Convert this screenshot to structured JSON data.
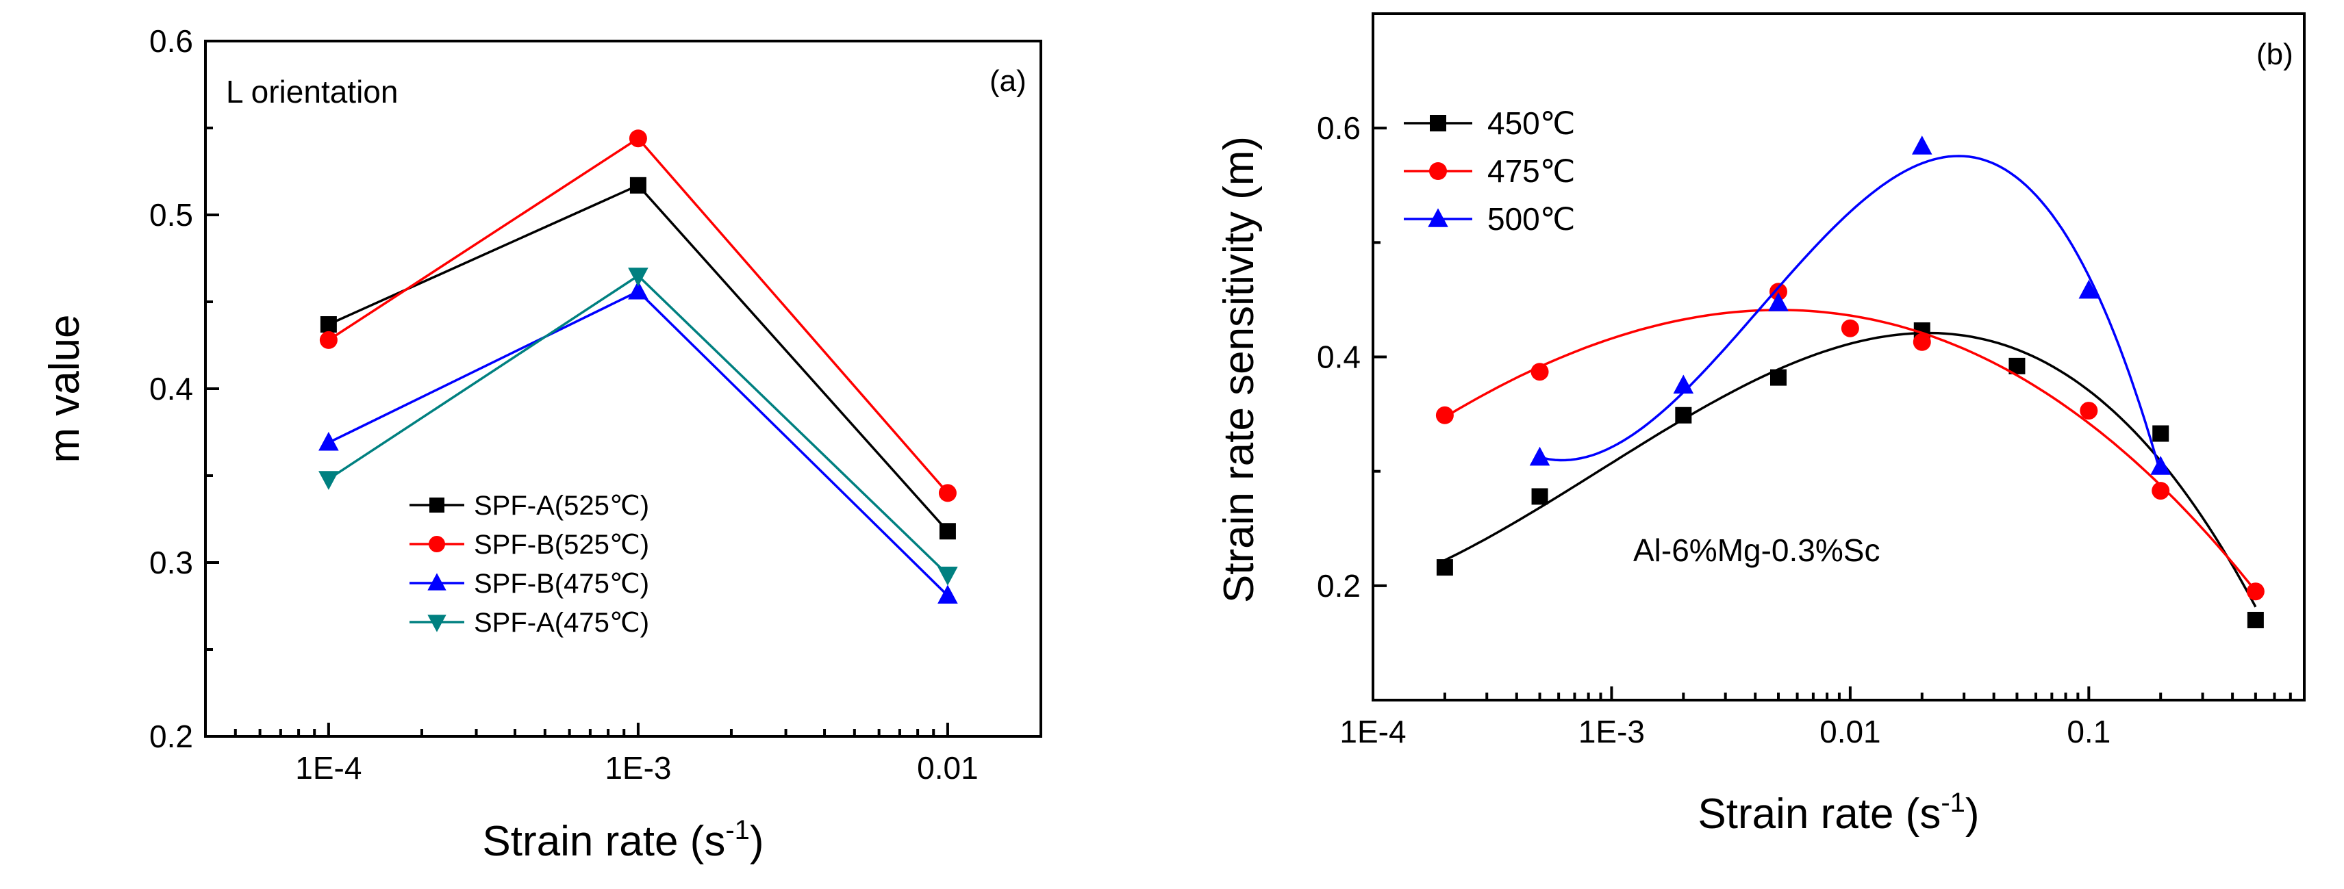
{
  "chart_data": [
    {
      "type": "line",
      "panel_label": "(a)",
      "annotation": "L orientation",
      "xlabel": "Strain rate (s",
      "xlabel_sup": "-1",
      "xlabel_end": ")",
      "ylabel": "m value",
      "xscale": "log",
      "xlim": [
        4e-05,
        0.02
      ],
      "ylim": [
        0.2,
        0.6
      ],
      "x_ticks": [
        {
          "value": 0.0001,
          "label": "1E-4"
        },
        {
          "value": 0.001,
          "label": "1E-3"
        },
        {
          "value": 0.01,
          "label": "0.01"
        }
      ],
      "y_ticks": [
        {
          "value": 0.2,
          "label": "0.2"
        },
        {
          "value": 0.3,
          "label": "0.3"
        },
        {
          "value": 0.4,
          "label": "0.4"
        },
        {
          "value": 0.5,
          "label": "0.5"
        },
        {
          "value": 0.6,
          "label": "0.6"
        }
      ],
      "x": [
        0.0001,
        0.001,
        0.01
      ],
      "legend_position": "lower-middle",
      "series": [
        {
          "name": "SPF-A(525℃)",
          "color": "#000000",
          "marker": "square",
          "values": [
            0.437,
            0.517,
            0.318
          ]
        },
        {
          "name": "SPF-B(525℃)",
          "color": "#ff0000",
          "marker": "circle",
          "values": [
            0.428,
            0.544,
            0.34
          ]
        },
        {
          "name": "SPF-B(475℃)",
          "color": "#0000ff",
          "marker": "triangle-up",
          "values": [
            0.369,
            0.456,
            0.281
          ]
        },
        {
          "name": "SPF-A(475℃)",
          "color": "#008080",
          "marker": "triangle-down",
          "values": [
            0.348,
            0.465,
            0.293
          ]
        }
      ]
    },
    {
      "type": "scatter",
      "panel_label": "(b)",
      "annotation": "Al-6%Mg-0.3%Sc",
      "xlabel": "Strain rate (s",
      "xlabel_sup": "-1",
      "xlabel_end": ")",
      "ylabel": "Strain rate sensitivity (m)",
      "xscale": "log",
      "xlim": [
        0.0001,
        0.8
      ],
      "ylim": [
        0.1,
        0.7
      ],
      "x_ticks": [
        {
          "value": 0.0001,
          "label": "1E-4"
        },
        {
          "value": 0.001,
          "label": "1E-3"
        },
        {
          "value": 0.01,
          "label": "0.01"
        },
        {
          "value": 0.1,
          "label": "0.1"
        }
      ],
      "y_ticks": [
        {
          "value": 0.2,
          "label": "0.2"
        },
        {
          "value": 0.4,
          "label": "0.4"
        },
        {
          "value": 0.6,
          "label": "0.6"
        }
      ],
      "fit_curves": true,
      "legend_position": "top-left",
      "series": [
        {
          "name": "450℃",
          "color": "#000000",
          "marker": "square",
          "x": [
            0.0002,
            0.0005,
            0.002,
            0.005,
            0.02,
            0.05,
            0.2,
            0.5
          ],
          "values": [
            0.216,
            0.278,
            0.349,
            0.382,
            0.423,
            0.392,
            0.333,
            0.17
          ]
        },
        {
          "name": "475℃",
          "color": "#ff0000",
          "marker": "circle",
          "x": [
            0.0002,
            0.0005,
            0.005,
            0.01,
            0.02,
            0.1,
            0.2,
            0.5
          ],
          "values": [
            0.349,
            0.387,
            0.457,
            0.425,
            0.413,
            0.353,
            0.283,
            0.195
          ]
        },
        {
          "name": "500℃",
          "color": "#0000ff",
          "marker": "triangle-up",
          "x": [
            0.0005,
            0.002,
            0.005,
            0.02,
            0.1,
            0.2
          ],
          "values": [
            0.312,
            0.375,
            0.447,
            0.584,
            0.458,
            0.304
          ]
        }
      ]
    }
  ]
}
